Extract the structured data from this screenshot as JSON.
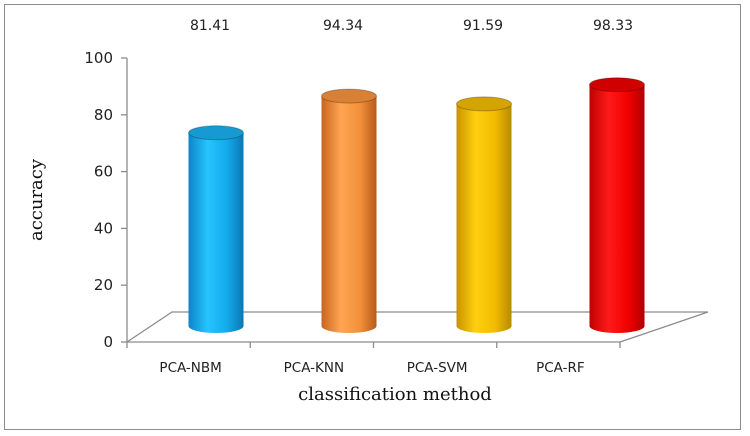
{
  "chart_data": {
    "type": "bar",
    "style": "3d-cylinder",
    "title": "",
    "xlabel": "classification method",
    "ylabel": "accuracy",
    "categories": [
      "PCA-NBM",
      "PCA-KNN",
      "PCA-SVM",
      "PCA-RF"
    ],
    "values": [
      81.41,
      94.34,
      91.59,
      98.33
    ],
    "value_labels": [
      "81.41",
      "94.34",
      "91.59",
      "98.33"
    ],
    "colors": [
      "#1ab0ee",
      "#f7923f",
      "#f2bb00",
      "#ee0000"
    ],
    "ylim": [
      0,
      100
    ],
    "yticks": [
      "0",
      "20",
      "40",
      "60",
      "80",
      "100"
    ],
    "grid": false,
    "legend": false
  }
}
